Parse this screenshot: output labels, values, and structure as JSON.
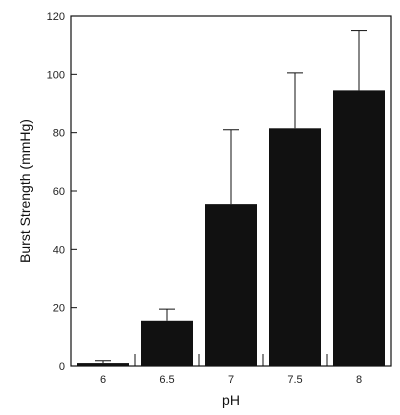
{
  "chart_data": {
    "type": "bar",
    "categories": [
      "6",
      "6.5",
      "7",
      "7.5",
      "8"
    ],
    "values": [
      1,
      15.5,
      55.5,
      81.5,
      94.5
    ],
    "error_upper": [
      1.8,
      19.5,
      81,
      100.5,
      115
    ],
    "xlabel": "pH",
    "ylabel": "Burst Strength (mmHg)",
    "ylim": [
      0,
      120
    ],
    "yticks": [
      "0",
      "20",
      "40",
      "60",
      "80",
      "100",
      "120"
    ],
    "grid": false,
    "bar_color": "#111111"
  }
}
